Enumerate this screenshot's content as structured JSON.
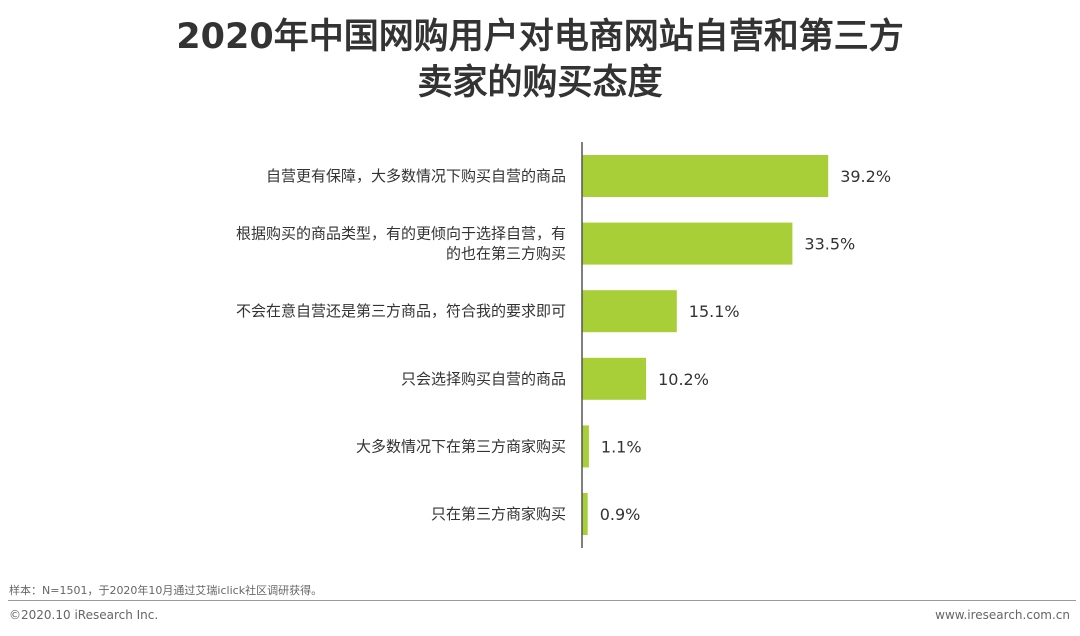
{
  "title_line1": "2020年中国网购用户对电商网站自营和第三方",
  "title_line2": "卖家的购买态度",
  "colors": {
    "bar": "#a9cf38",
    "axis": "#555555"
  },
  "chart_data": {
    "type": "bar",
    "orientation": "horizontal",
    "title": "2020年中国网购用户对电商网站自营和第三方卖家的购买态度",
    "categories": [
      "自营更有保障，大多数情况下购买自营的商品",
      "根据购买的商品类型，有的更倾向于选择自营，有的也在第三方购买",
      "不会在意自营还是第三方商品，符合我的要求即可",
      "只会选择购买自营的商品",
      "大多数情况下在第三方商家购买",
      "只在第三方商家购买"
    ],
    "category_lines": [
      [
        "自营更有保障，大多数情况下购买自营的商品"
      ],
      [
        "根据购买的商品类型，有的更倾向于选择自营，有",
        "的也在第三方购买"
      ],
      [
        "不会在意自营还是第三方商品，符合我的要求即可"
      ],
      [
        "只会选择购买自营的商品"
      ],
      [
        "大多数情况下在第三方商家购买"
      ],
      [
        "只在第三方商家购买"
      ]
    ],
    "values": [
      39.2,
      33.5,
      15.1,
      10.2,
      1.1,
      0.9
    ],
    "value_labels": [
      "39.2%",
      "33.5%",
      "15.1%",
      "10.2%",
      "1.1%",
      "0.9%"
    ],
    "unit": "%",
    "xlim": [
      0,
      50
    ],
    "grid": false,
    "legend": "none"
  },
  "footer": {
    "note": "样本：N=1501，于2020年10月通过艾瑞iclick社区调研获得。",
    "copyright": "©2020.10 iResearch Inc.",
    "website": "www.iresearch.com.cn"
  }
}
